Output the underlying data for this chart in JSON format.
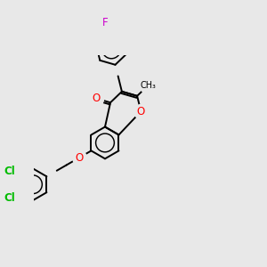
{
  "background_color": "#e8e8e8",
  "bond_color": "#000000",
  "oxygen_color": "#ff0000",
  "chlorine_color": "#00bb00",
  "fluorine_color": "#cc00cc",
  "figsize": [
    3.0,
    3.0
  ],
  "dpi": 100,
  "xlim": [
    -4.5,
    8.5
  ],
  "ylim": [
    -4.5,
    5.5
  ],
  "lw": 1.4,
  "label_fontsize": 8.5
}
